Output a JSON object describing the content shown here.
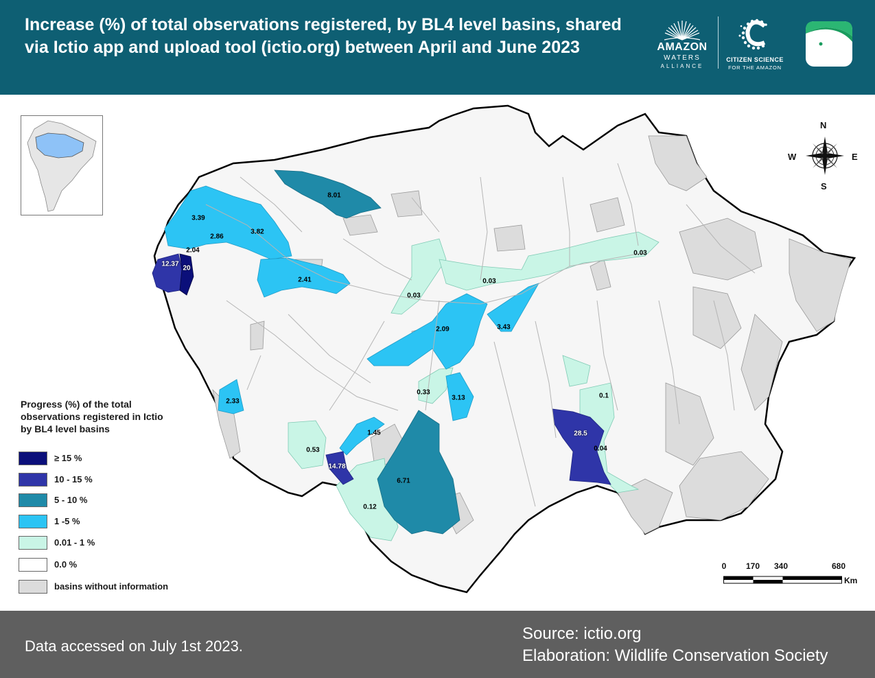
{
  "header": {
    "title": "Increase (%) of total observations registered, by BL4 level basins, shared via Ictio app and upload tool (ictio.org) between April and June 2023",
    "background": "#0e5f73"
  },
  "logos": {
    "amazon_waters": {
      "line1": "AMAZON",
      "line2": "WATERS",
      "line3": "ALLIANCE"
    },
    "citizen_science": {
      "line1": "CITIZEN SCIENCE",
      "line2": "FOR THE AMAZON"
    },
    "ictio": {
      "icon": "fish-icon"
    }
  },
  "legend": {
    "title": "Progress (%) of the total observations registered in Ictio by BL4 level basins",
    "items": [
      {
        "label": "≥ 15 %",
        "color": "#0b0f7a"
      },
      {
        "label": "10 - 15 %",
        "color": "#2f35a8"
      },
      {
        "label": "5 - 10 %",
        "color": "#1f8aa8"
      },
      {
        "label": "1 -5 %",
        "color": "#2cc4f4"
      },
      {
        "label": "0.01 - 1 %",
        "color": "#c9f5e6"
      },
      {
        "label": "0.0 %",
        "color": "#ffffff"
      },
      {
        "label": "basins without information",
        "color": "#dcdcdc"
      }
    ]
  },
  "basins": [
    {
      "value": "8.01",
      "category": "5 - 10 %"
    },
    {
      "value": "3.39",
      "category": "1 -5 %"
    },
    {
      "value": "3.82",
      "category": "1 -5 %"
    },
    {
      "value": "2.86",
      "category": "1 -5 %"
    },
    {
      "value": "2.04",
      "category": "1 -5 %"
    },
    {
      "value": "12.37",
      "category": "10 - 15 %"
    },
    {
      "value": "20",
      "category": "≥ 15 %"
    },
    {
      "value": "2.41",
      "category": "1 -5 %"
    },
    {
      "value": "0.03",
      "category": "0.01 - 1 %"
    },
    {
      "value": "0.03",
      "category": "0.01 - 1 %"
    },
    {
      "value": "0.03",
      "category": "0.01 - 1 %"
    },
    {
      "value": "2.09",
      "category": "1 -5 %"
    },
    {
      "value": "3.43",
      "category": "1 -5 %"
    },
    {
      "value": "0.33",
      "category": "0.01 - 1 %"
    },
    {
      "value": "3.13",
      "category": "1 -5 %"
    },
    {
      "value": "2.33",
      "category": "1 -5 %"
    },
    {
      "value": "1.45",
      "category": "1 -5 %"
    },
    {
      "value": "0.53",
      "category": "0.01 - 1 %"
    },
    {
      "value": "14.78",
      "category": "10 - 15 %"
    },
    {
      "value": "6.71",
      "category": "5 - 10 %"
    },
    {
      "value": "0.12",
      "category": "0.01 - 1 %"
    },
    {
      "value": "0.1",
      "category": "0.01 - 1 %"
    },
    {
      "value": "28.5",
      "category": "≥ 15 %"
    },
    {
      "value": "0.04",
      "category": "0.01 - 1 %"
    }
  ],
  "compass": {
    "n": "N",
    "s": "S",
    "e": "E",
    "w": "W"
  },
  "scale_bar": {
    "ticks": [
      "0",
      "170",
      "340",
      "680"
    ],
    "unit": "Km"
  },
  "inset": {
    "description_icon": "south-america-locator-icon"
  },
  "footer": {
    "accessed": "Data accessed on July 1st 2023.",
    "source": "Source: ictio.org",
    "elaboration": "Elaboration: Wildlife Conservation Society",
    "background": "#5f5f5f"
  }
}
